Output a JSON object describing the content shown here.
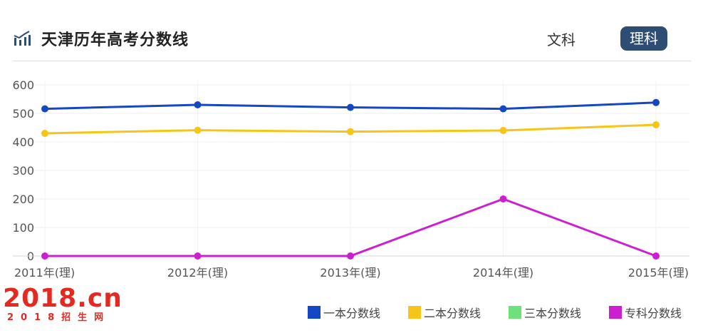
{
  "header": {
    "title": "天津历年高考分数线",
    "icon": "bar-chart-icon",
    "tabs": [
      "文科",
      "理科"
    ],
    "active_tab": "理科"
  },
  "colors": {
    "series1": "#1547c4",
    "series2": "#f5c518",
    "series3": "#6fe07a",
    "series4": "#cc1fcf",
    "active_tab_bg": "#2e4d74",
    "logo": "#e22a22"
  },
  "chart_data": {
    "type": "line",
    "x": [
      "2011年(理)",
      "2012年(理)",
      "2013年(理)",
      "2014年(理)",
      "2015年(理)"
    ],
    "ylim": [
      0,
      600
    ],
    "yticks": [
      0,
      100,
      200,
      300,
      400,
      500,
      600
    ],
    "grid": true,
    "legend_position": "bottom-right",
    "series": [
      {
        "name": "一本分数线",
        "values": [
          516,
          530,
          521,
          516,
          538
        ]
      },
      {
        "name": "二本分数线",
        "values": [
          430,
          441,
          436,
          440,
          460
        ]
      },
      {
        "name": "三本分数线",
        "values": [
          null,
          null,
          null,
          null,
          null
        ]
      },
      {
        "name": "专科分数线",
        "values": [
          0,
          0,
          0,
          200,
          0
        ]
      }
    ]
  },
  "logo": {
    "main": "2018.cn",
    "sub": "2018招生网"
  }
}
